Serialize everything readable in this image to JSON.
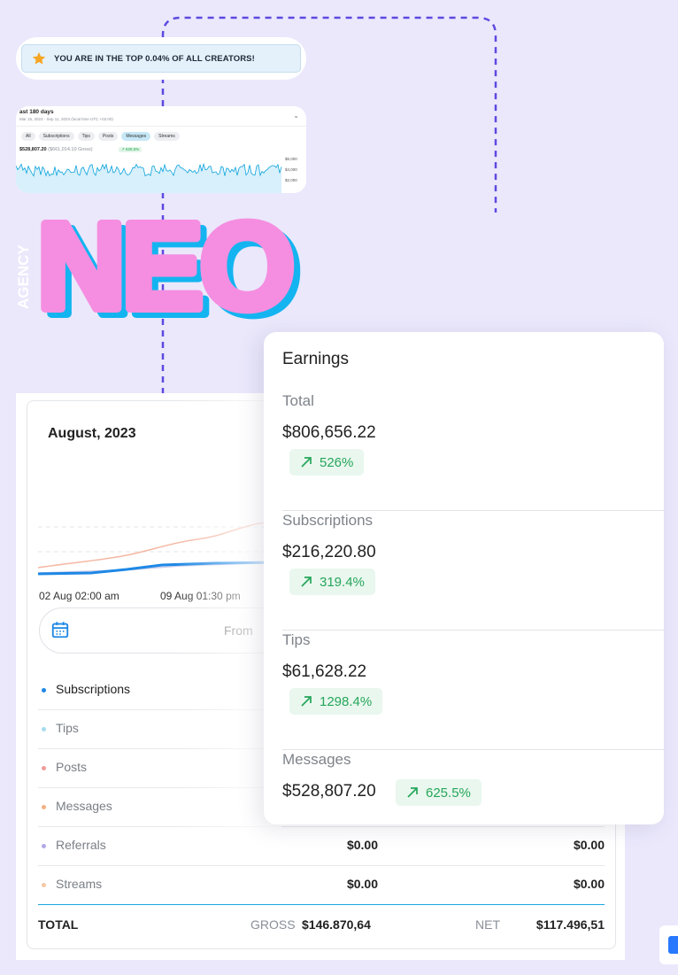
{
  "banner": {
    "text": "YOU ARE IN THE TOP 0.04% OF ALL CREATORS!",
    "star_color": "#f5a623"
  },
  "mini_stats": {
    "title": "ast 180 days",
    "subtitle": "Mar 15, 2023 - Sep 11, 2023 (local time UTC +02:00)",
    "tabs": [
      "All",
      "Subscriptions",
      "Tips",
      "Posts",
      "Messages",
      "Streams"
    ],
    "active_tab": "Messages",
    "total": "$528,807.20",
    "gross": "($661,014.10 Gross)",
    "change": "↗ 625.5%",
    "y_ticks": [
      "$6,000",
      "$4,000",
      "$2,000"
    ]
  },
  "logo": {
    "word": "NEO",
    "side_text": "AGENCY",
    "fill_color": "#f58ee0",
    "shadow_color": "#14b4f0"
  },
  "earnings": {
    "title": "Earnings",
    "sections": [
      {
        "name": "Total",
        "amount": "$806,656.22",
        "change": "526%",
        "color": "#8a939b"
      },
      {
        "name": "Subscriptions",
        "amount": "$216,220.80",
        "change": "319.4%",
        "color": "#7cb342"
      },
      {
        "name": "Tips",
        "amount": "$61,628.22",
        "change": "1298.4%",
        "color": "#9575cd"
      },
      {
        "name": "Messages",
        "amount": "$528,807.20",
        "change": "625.5%",
        "color": "#00a8e8"
      }
    ]
  },
  "statement": {
    "month": "August, 2023",
    "x_labels": [
      "02 Aug 02:00 am",
      "09 Aug 01:30 pm"
    ],
    "from_label": "From",
    "rows": [
      {
        "label": "Subscriptions",
        "dot": "#1e88e5",
        "gross": "",
        "net": ""
      },
      {
        "label": "Tips",
        "dot": "#a6dcef",
        "gross": "",
        "net": ""
      },
      {
        "label": "Posts",
        "dot": "#ef9a9a",
        "gross": "",
        "net": ""
      },
      {
        "label": "Messages",
        "dot": "#f4b183",
        "gross": "",
        "net": ""
      },
      {
        "label": "Referrals",
        "dot": "#b3a9e6",
        "gross": "$0.00",
        "net": "$0.00"
      },
      {
        "label": "Streams",
        "dot": "#f6c9a4",
        "gross": "$0.00",
        "net": "$0.00"
      }
    ],
    "total": {
      "label": "TOTAL",
      "gross_label": "GROSS",
      "gross": "$146.870,64",
      "net_label": "NET",
      "net": "$117.496,51"
    }
  }
}
